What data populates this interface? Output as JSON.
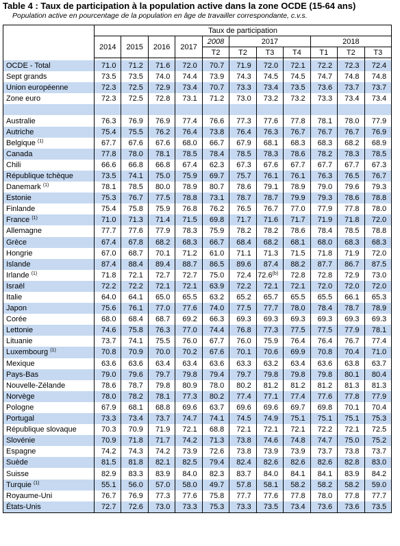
{
  "title": "Table 4 : Taux de participation à la population active dans la zone OCDE (15-64 ans)",
  "subtitle": "Population active en pourcentage de la population en âge de travailler correspondante, c.v.s.",
  "table": {
    "header": "Taux de participation",
    "annual": [
      "2014",
      "2015",
      "2016",
      "2017"
    ],
    "quarterly": [
      {
        "year": "2008",
        "italic": true,
        "quarters": [
          "T2"
        ]
      },
      {
        "year": "2017",
        "quarters": [
          "T2",
          "T3",
          "T4"
        ]
      },
      {
        "year": "2018",
        "quarters": [
          "T1",
          "T2",
          "T3"
        ]
      }
    ],
    "groups": [
      {
        "rows": [
          {
            "name": "OCDE - Total",
            "values": [
              "71.0",
              "71.2",
              "71.6",
              "72.0",
              "70.7",
              "71.9",
              "72.0",
              "72.1",
              "72.2",
              "72.3",
              "72.4"
            ]
          },
          {
            "name": "Sept grands",
            "values": [
              "73.5",
              "73.5",
              "74.0",
              "74.4",
              "73.9",
              "74.3",
              "74.5",
              "74.5",
              "74.7",
              "74.8",
              "74.8"
            ]
          },
          {
            "name": "Union européenne",
            "values": [
              "72.3",
              "72.5",
              "72.9",
              "73.4",
              "70.7",
              "73.3",
              "73.4",
              "73.5",
              "73.6",
              "73.7",
              "73.7"
            ]
          },
          {
            "name": "Zone euro",
            "values": [
              "72.3",
              "72.5",
              "72.8",
              "73.1",
              "71.2",
              "73.0",
              "73.2",
              "73.2",
              "73.3",
              "73.4",
              "73.4"
            ]
          }
        ]
      },
      {
        "rows": [
          {
            "name": "Australie",
            "values": [
              "76.3",
              "76.9",
              "76.9",
              "77.4",
              "76.6",
              "77.3",
              "77.6",
              "77.8",
              "78.1",
              "78.0",
              "77.9"
            ]
          },
          {
            "name": "Autriche",
            "values": [
              "75.4",
              "75.5",
              "76.2",
              "76.4",
              "73.8",
              "76.4",
              "76.3",
              "76.7",
              "76.7",
              "76.7",
              "76.9"
            ]
          },
          {
            "name": "Belgique",
            "note": "(1)",
            "values": [
              "67.7",
              "67.6",
              "67.6",
              "68.0",
              "66.7",
              "67.9",
              "68.1",
              "68.3",
              "68.3",
              "68.2",
              "68.9"
            ]
          },
          {
            "name": "Canada",
            "values": [
              "77.8",
              "78.0",
              "78.1",
              "78.5",
              "78.4",
              "78.5",
              "78.3",
              "78.6",
              "78.2",
              "78.3",
              "78.5"
            ]
          },
          {
            "name": "Chili",
            "values": [
              "66.6",
              "66.8",
              "66.8",
              "67.4",
              "62.3",
              "67.3",
              "67.6",
              "67.7",
              "67.7",
              "67.7",
              "67.3"
            ]
          },
          {
            "name": "République tchèque",
            "values": [
              "73.5",
              "74.1",
              "75.0",
              "75.9",
              "69.7",
              "75.7",
              "76.1",
              "76.1",
              "76.3",
              "76.5",
              "76.7"
            ]
          },
          {
            "name": "Danemark",
            "note": "(1)",
            "values": [
              "78.1",
              "78.5",
              "80.0",
              "78.9",
              "80.7",
              "78.6",
              "79.1",
              "78.9",
              "79.0",
              "79.6",
              "79.3"
            ]
          },
          {
            "name": "Estonie",
            "values": [
              "75.3",
              "76.7",
              "77.5",
              "78.8",
              "73.1",
              "78.7",
              "78.7",
              "79.9",
              "79.3",
              "78.6",
              "78.8"
            ]
          },
          {
            "name": "Finlande",
            "values": [
              "75.4",
              "75.8",
              "75.9",
              "76.8",
              "76.2",
              "76.5",
              "76.7",
              "77.0",
              "77.9",
              "77.8",
              "78.0"
            ]
          },
          {
            "name": "France",
            "note": "(1)",
            "values": [
              "71.0",
              "71.3",
              "71.4",
              "71.5",
              "69.8",
              "71.7",
              "71.6",
              "71.7",
              "71.9",
              "71.8",
              "72.0"
            ]
          },
          {
            "name": "Allemagne",
            "values": [
              "77.7",
              "77.6",
              "77.9",
              "78.3",
              "75.9",
              "78.2",
              "78.2",
              "78.6",
              "78.4",
              "78.5",
              "78.8"
            ]
          },
          {
            "name": "Grèce",
            "values": [
              "67.4",
              "67.8",
              "68.2",
              "68.3",
              "66.7",
              "68.4",
              "68.2",
              "68.1",
              "68.0",
              "68.3",
              "68.3"
            ]
          },
          {
            "name": "Hongrie",
            "values": [
              "67.0",
              "68.7",
              "70.1",
              "71.2",
              "61.0",
              "71.1",
              "71.3",
              "71.5",
              "71.8",
              "71.9",
              "72.0"
            ]
          },
          {
            "name": "Islande",
            "values": [
              "87.4",
              "88.4",
              "89.4",
              "88.7",
              "86.5",
              "89.6",
              "87.4",
              "88.2",
              "87.7",
              "86.7",
              "87.5"
            ]
          },
          {
            "name": "Irlande",
            "note": "(1)",
            "values": [
              "71.8",
              "72.1",
              "72.7",
              "72.7",
              "75.0",
              "72.4",
              {
                "text": "72.6",
                "note": "(b)"
              },
              "72.8",
              "72.8",
              "72.9",
              "73.0"
            ]
          },
          {
            "name": "Israël",
            "values": [
              "72.2",
              "72.2",
              "72.1",
              "72.1",
              "63.9",
              "72.2",
              "72.1",
              "72.1",
              "72.0",
              "72.0",
              "72.0"
            ]
          },
          {
            "name": "Italie",
            "values": [
              "64.0",
              "64.1",
              "65.0",
              "65.5",
              "63.2",
              "65.2",
              "65.7",
              "65.5",
              "65.5",
              "66.1",
              "65.3"
            ]
          },
          {
            "name": "Japon",
            "values": [
              "75.6",
              "76.1",
              "77.0",
              "77.6",
              "74.0",
              "77.5",
              "77.7",
              "78.0",
              "78.4",
              "78.7",
              "78.9"
            ]
          },
          {
            "name": "Corée",
            "values": [
              "68.0",
              "68.4",
              "68.7",
              "69.2",
              "66.3",
              "69.3",
              "69.3",
              "69.3",
              "69.3",
              "69.3",
              "69.3"
            ]
          },
          {
            "name": "Lettonie",
            "values": [
              "74.6",
              "75.8",
              "76.3",
              "77.0",
              "74.4",
              "76.8",
              "77.3",
              "77.5",
              "77.5",
              "77.9",
              "78.1"
            ]
          },
          {
            "name": "Lituanie",
            "values": [
              "73.7",
              "74.1",
              "75.5",
              "76.0",
              "67.7",
              "76.0",
              "75.9",
              "76.4",
              "76.4",
              "76.7",
              "77.4"
            ]
          },
          {
            "name": "Luxembourg",
            "note": "(1)",
            "values": [
              "70.8",
              "70.9",
              "70.0",
              "70.2",
              "67.6",
              "70.1",
              "70.6",
              "69.9",
              "70.8",
              "70.4",
              "71.0"
            ]
          },
          {
            "name": "Mexique",
            "values": [
              "63.6",
              "63.6",
              "63.4",
              "63.4",
              "63.6",
              "63.3",
              "63.2",
              "63.4",
              "63.6",
              "63.8",
              "63.7"
            ]
          },
          {
            "name": "Pays-Bas",
            "values": [
              "79.0",
              "79.6",
              "79.7",
              "79.8",
              "79.4",
              "79.7",
              "79.8",
              "79.8",
              "79.8",
              "80.1",
              "80.4"
            ]
          },
          {
            "name": "Nouvelle-Zélande",
            "values": [
              "78.6",
              "78.7",
              "79.8",
              "80.9",
              "78.0",
              "80.2",
              "81.2",
              "81.2",
              "81.2",
              "81.3",
              "81.3"
            ]
          },
          {
            "name": "Norvège",
            "values": [
              "78.0",
              "78.2",
              "78.1",
              "77.3",
              "80.2",
              "77.4",
              "77.1",
              "77.4",
              "77.6",
              "77.8",
              "77.9"
            ]
          },
          {
            "name": "Pologne",
            "values": [
              "67.9",
              "68.1",
              "68.8",
              "69.6",
              "63.7",
              "69.6",
              "69.6",
              "69.7",
              "69.8",
              "70.1",
              "70.4"
            ]
          },
          {
            "name": "Portugal",
            "values": [
              "73.3",
              "73.4",
              "73.7",
              "74.7",
              "74.1",
              "74.5",
              "74.9",
              "75.1",
              "75.1",
              "75.1",
              "75.3"
            ]
          },
          {
            "name": "République slovaque",
            "values": [
              "70.3",
              "70.9",
              "71.9",
              "72.1",
              "68.8",
              "72.1",
              "72.1",
              "72.1",
              "72.2",
              "72.1",
              "72.5"
            ]
          },
          {
            "name": "Slovénie",
            "values": [
              "70.9",
              "71.8",
              "71.7",
              "74.2",
              "71.3",
              "73.8",
              "74.6",
              "74.8",
              "74.7",
              "75.0",
              "75.2"
            ]
          },
          {
            "name": "Espagne",
            "values": [
              "74.2",
              "74.3",
              "74.2",
              "73.9",
              "72.6",
              "73.8",
              "73.9",
              "73.9",
              "73.7",
              "73.8",
              "73.7"
            ]
          },
          {
            "name": "Suède",
            "values": [
              "81.5",
              "81.8",
              "82.1",
              "82.5",
              "79.4",
              "82.4",
              "82.6",
              "82.6",
              "82.6",
              "82.8",
              "83.0"
            ]
          },
          {
            "name": "Suisse",
            "values": [
              "82.9",
              "83.3",
              "83.9",
              "84.0",
              "82.3",
              "83.7",
              "84.0",
              "84.1",
              "84.1",
              "83.9",
              "84.2"
            ]
          },
          {
            "name": "Turquie",
            "note": "(1)",
            "values": [
              "55.1",
              "56.0",
              "57.0",
              "58.0",
              "49.7",
              "57.8",
              "58.1",
              "58.2",
              "58.2",
              "58.2",
              "59.0"
            ]
          },
          {
            "name": "Royaume-Uni",
            "values": [
              "76.7",
              "76.9",
              "77.3",
              "77.6",
              "75.8",
              "77.7",
              "77.6",
              "77.8",
              "78.0",
              "77.8",
              "77.7"
            ]
          },
          {
            "name": "États-Unis",
            "values": [
              "72.7",
              "72.6",
              "73.0",
              "73.3",
              "75.3",
              "73.3",
              "73.5",
              "73.4",
              "73.6",
              "73.6",
              "73.5"
            ]
          }
        ]
      }
    ]
  }
}
